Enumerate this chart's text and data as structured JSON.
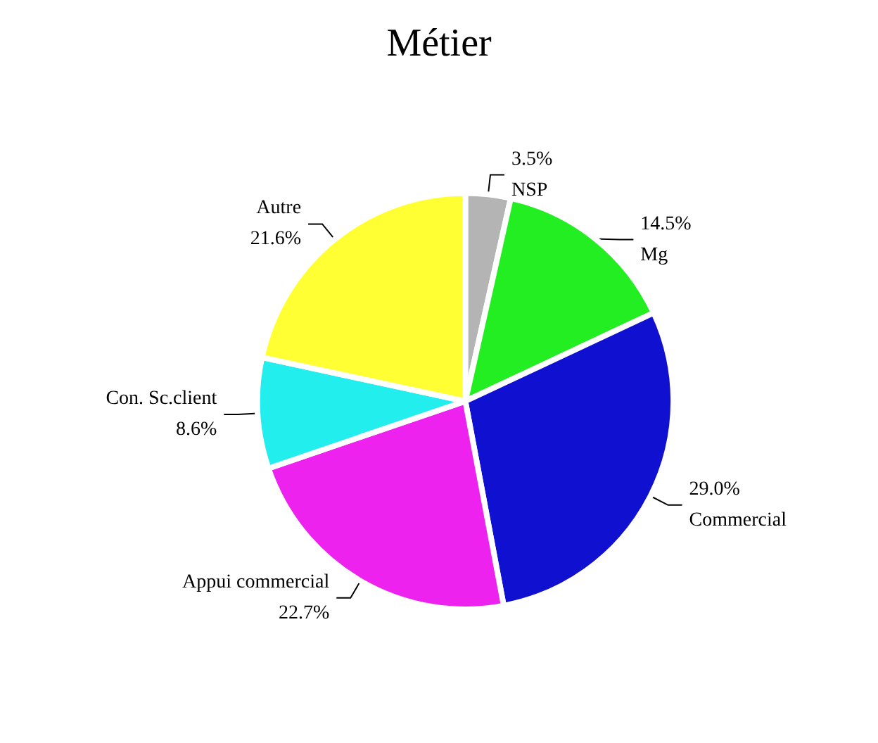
{
  "chart_data": {
    "type": "pie",
    "title": "Métier",
    "categories": [
      "NSP",
      "Mg",
      "Commercial",
      "Appui commercial",
      "Con. Sc.client",
      "Autre"
    ],
    "values": [
      3.5,
      14.5,
      29.0,
      22.7,
      8.6,
      21.6
    ],
    "value_labels": [
      "3.5%",
      "14.5%",
      "29.0%",
      "22.7%",
      "8.6%",
      "21.6%"
    ],
    "colors": [
      "#b4b4b4",
      "#22ee22",
      "#1010d0",
      "#ee22ee",
      "#22eeee",
      "#ffff33"
    ],
    "legend": false
  }
}
